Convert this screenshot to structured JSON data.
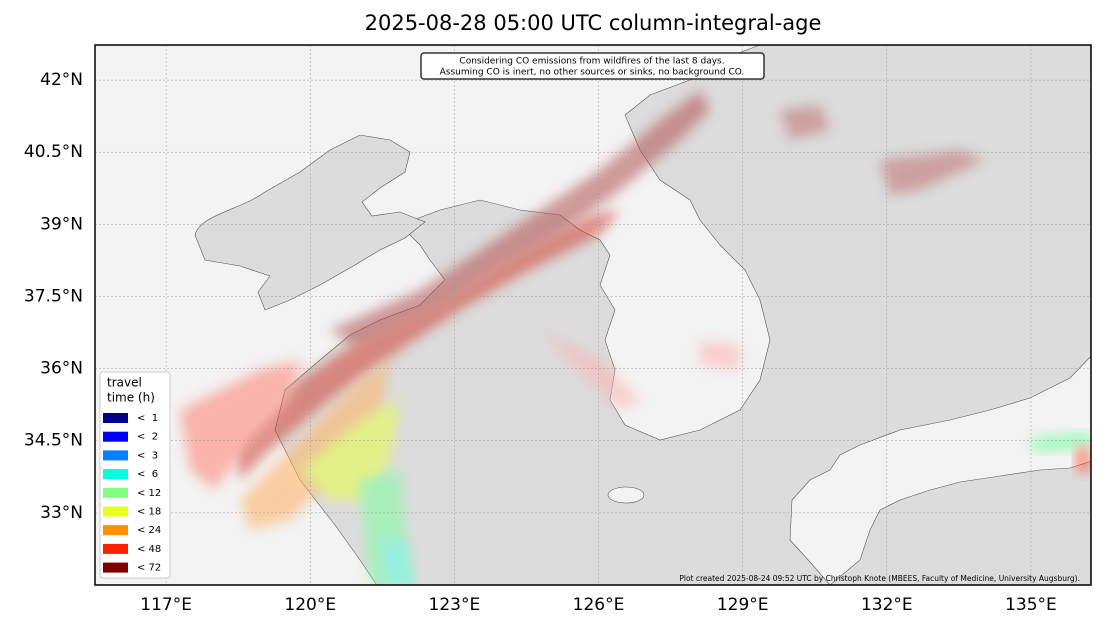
{
  "chart_data": {
    "type": "map",
    "title": "2025-08-28 05:00 UTC column-integral-age",
    "note": [
      "Considering CO emissions from wildfires of the last 8 days.",
      "Assuming CO is inert, no other sources or sinks, no background CO."
    ],
    "credit": "Plot created 2025-08-24 09:52 UTC by Christoph Knote (MBEES, Faculty of Medicine, University Augsburg).",
    "xlim": [
      115.52,
      136.25
    ],
    "ylim": [
      31.5,
      42.73
    ],
    "xticks": [
      {
        "value": 117,
        "label": "117°E"
      },
      {
        "value": 120,
        "label": "120°E"
      },
      {
        "value": 123,
        "label": "123°E"
      },
      {
        "value": 126,
        "label": "126°E"
      },
      {
        "value": 129,
        "label": "129°E"
      },
      {
        "value": 132,
        "label": "132°E"
      },
      {
        "value": 135,
        "label": "135°E"
      }
    ],
    "yticks": [
      {
        "value": 33,
        "label": "33°N"
      },
      {
        "value": 34.5,
        "label": "34.5°N"
      },
      {
        "value": 36,
        "label": "36°N"
      },
      {
        "value": 37.5,
        "label": "37.5°N"
      },
      {
        "value": 39,
        "label": "39°N"
      },
      {
        "value": 40.5,
        "label": "40.5°N"
      },
      {
        "value": 42,
        "label": "42°N"
      }
    ],
    "grid": true,
    "legend": {
      "title": [
        "travel",
        "time (h)"
      ],
      "items": [
        {
          "label": "<  1",
          "color": "#00008b"
        },
        {
          "label": "<  2",
          "color": "#0000ff"
        },
        {
          "label": "<  3",
          "color": "#0080ff"
        },
        {
          "label": "<  6",
          "color": "#00ffe0"
        },
        {
          "label": "< 12",
          "color": "#80ff80"
        },
        {
          "label": "< 18",
          "color": "#e8ff20"
        },
        {
          "label": "< 24",
          "color": "#ff9000"
        },
        {
          "label": "< 48",
          "color": "#ff2000"
        },
        {
          "label": "< 72",
          "color": "#800000"
        }
      ]
    }
  }
}
